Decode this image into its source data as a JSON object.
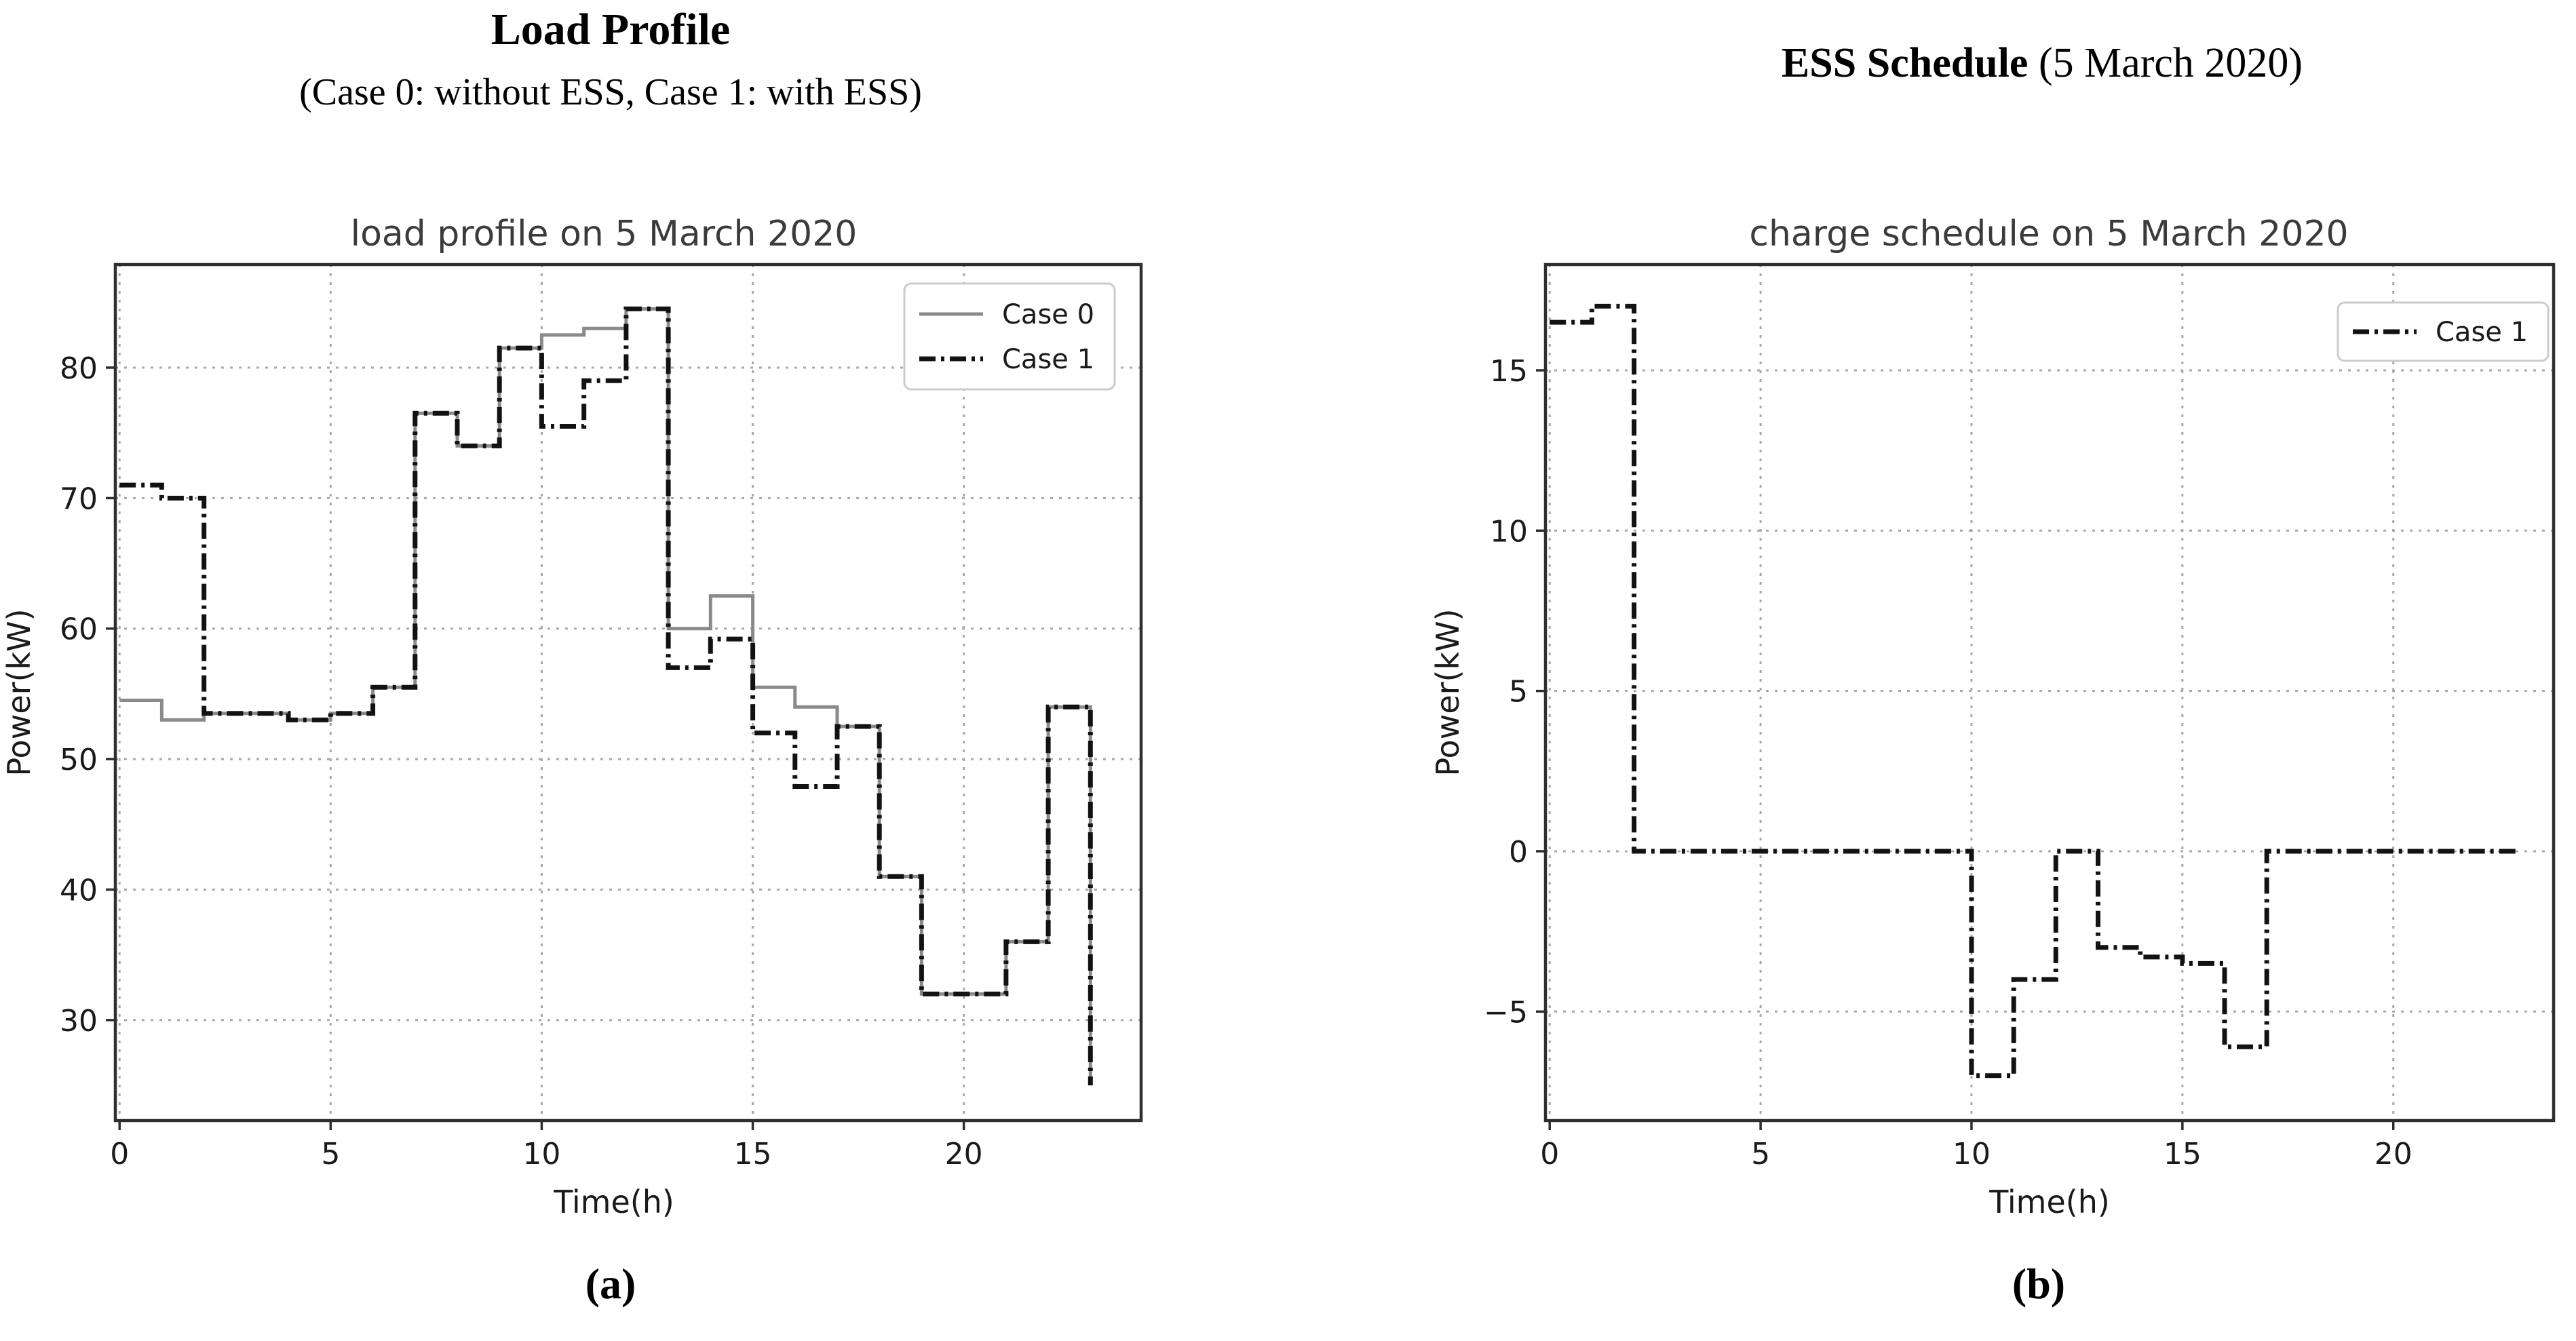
{
  "left_figure": {
    "heading": "Load Profile",
    "subheading": "(Case 0: without ESS, Case 1: with ESS)",
    "caption": "(a)"
  },
  "right_figure": {
    "heading_bold": "ESS Schedule",
    "heading_rest": " (5 March 2020)",
    "caption": "(b)"
  },
  "colors": {
    "case0_line": "#8a8a8a",
    "case1_line": "#121212",
    "gridline": "#a8a8a8",
    "spine": "#2e2e2e",
    "legend_border": "#cccccc",
    "legend_background": "#ffffff"
  },
  "chart_data": [
    {
      "id": "load-profile-chart",
      "type": "line",
      "step": "post",
      "title": "load profile on 5 March 2020",
      "xlabel": "Time(h)",
      "ylabel": "Power(kW)",
      "x": [
        0,
        1,
        2,
        3,
        4,
        5,
        6,
        7,
        8,
        9,
        10,
        11,
        12,
        13,
        14,
        15,
        16,
        17,
        18,
        19,
        20,
        21,
        22,
        23
      ],
      "series": [
        {
          "name": "Case 0",
          "style": "solid",
          "color": "#8a8a8a",
          "width": 5,
          "values": [
            54.5,
            53,
            53.5,
            53.5,
            53,
            53.5,
            55.5,
            76.5,
            74,
            81.5,
            82.5,
            83,
            84.5,
            60,
            62.5,
            55.5,
            54,
            52.5,
            41,
            32,
            32,
            36,
            54,
            25
          ]
        },
        {
          "name": "Case 1",
          "style": "dashdot",
          "color": "#121212",
          "width": 7,
          "values": [
            71,
            70,
            53.5,
            53.5,
            53,
            53.5,
            55.5,
            76.5,
            74,
            81.5,
            75.5,
            79,
            84.5,
            57,
            59.2,
            52,
            47.9,
            52.5,
            41,
            32,
            32,
            36,
            54,
            25
          ]
        }
      ],
      "xticks": [
        0,
        5,
        10,
        15,
        20
      ],
      "yticks": [
        30,
        40,
        50,
        60,
        70,
        80
      ],
      "xlim": [
        -0.1,
        24.2
      ],
      "ylim": [
        22.3,
        87.9
      ],
      "grid": true,
      "legend_position": "top-right"
    },
    {
      "id": "ess-schedule-chart",
      "type": "line",
      "step": "post",
      "title": "charge schedule on 5 March 2020",
      "xlabel": "Time(h)",
      "ylabel": "Power(kW)",
      "x": [
        0,
        1,
        2,
        3,
        4,
        5,
        6,
        7,
        8,
        9,
        10,
        11,
        12,
        13,
        14,
        15,
        16,
        17,
        18,
        19,
        20,
        21,
        22,
        23
      ],
      "series": [
        {
          "name": "Case 1",
          "style": "dashdot",
          "color": "#121212",
          "width": 7,
          "values": [
            16.5,
            17,
            0,
            0,
            0,
            0,
            0,
            0,
            0,
            0,
            -7,
            -4,
            0,
            -3,
            -3.3,
            -3.5,
            -6.1,
            0,
            0,
            0,
            0,
            0,
            0,
            0
          ]
        }
      ],
      "xticks": [
        0,
        5,
        10,
        15,
        20
      ],
      "yticks": [
        -5,
        0,
        5,
        10,
        15
      ],
      "xlim": [
        -0.1,
        23.8
      ],
      "ylim": [
        -8.4,
        18.3
      ],
      "grid": true,
      "legend_position": "top-right"
    }
  ]
}
